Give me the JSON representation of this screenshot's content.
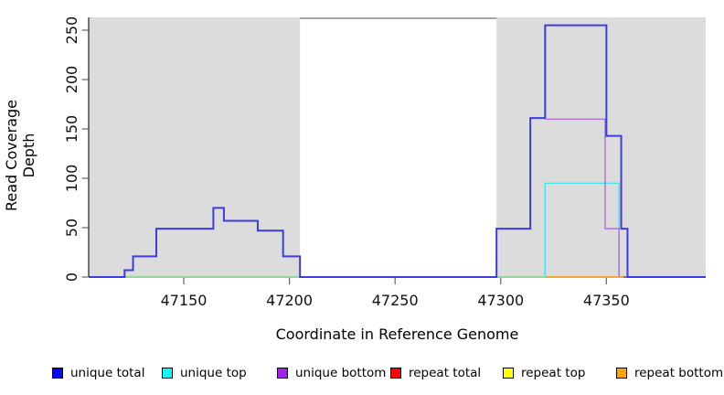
{
  "chart_data": {
    "type": "line",
    "subtype": "step",
    "title": "",
    "xlabel": "Coordinate in Reference Genome",
    "ylabel": "Read Coverage Depth",
    "xlim": [
      47105,
      47397
    ],
    "ylim": [
      0,
      263
    ],
    "xticks": [
      47150,
      47200,
      47250,
      47300,
      47350
    ],
    "yticks": [
      0,
      50,
      100,
      150,
      200,
      250
    ],
    "grid": false,
    "legend_position": "bottom",
    "colors": {
      "background": "#FFFFFF",
      "shade": "#DCDCDC",
      "axis": "#333333",
      "tick": "#666666",
      "tick_label": "#111111",
      "frame_top": "#8A8A8A"
    },
    "shaded_regions": [
      {
        "x1": 47105,
        "x2": 47205
      },
      {
        "x1": 47298,
        "x2": 47397
      }
    ],
    "frame_top_segment": {
      "x1": 47205,
      "x2": 47298
    },
    "series": [
      {
        "name": "zero overlap line (left region)",
        "line_color": "#8CDE8C",
        "width": 1.4,
        "steps": [
          [
            47122,
            0
          ]
        ],
        "end": 47205
      },
      {
        "name": "zero overlap line (right region)",
        "line_color": "#8CDE8C",
        "width": 1.4,
        "steps": [
          [
            47298,
            0
          ]
        ],
        "end": 47321
      },
      {
        "name": "repeat bottom",
        "line_color": "#FFA51E",
        "width": 1.8,
        "steps": [
          [
            47321,
            0
          ]
        ],
        "end": 47358
      },
      {
        "name": "unique top",
        "line_color": "#45E3E8",
        "width": 1.4,
        "steps": [
          [
            47321,
            0
          ],
          [
            47321,
            95
          ],
          [
            47356,
            0
          ]
        ]
      },
      {
        "name": "unique bottom",
        "line_color": "#AB63E0",
        "width": 1.3,
        "steps": [
          [
            47321,
            160
          ],
          [
            47349.4,
            49
          ],
          [
            47356,
            0
          ]
        ]
      },
      {
        "name": "unique total",
        "line_color": "#3C3CE0",
        "width": 2,
        "steps": [
          [
            47105,
            0
          ],
          [
            47122,
            7
          ],
          [
            47126,
            21
          ],
          [
            47137,
            49
          ],
          [
            47164,
            70
          ],
          [
            47169,
            57
          ],
          [
            47185,
            47
          ],
          [
            47197,
            21
          ],
          [
            47205,
            0
          ],
          [
            47298,
            49
          ],
          [
            47314,
            161
          ],
          [
            47321,
            255
          ],
          [
            47350,
            143
          ],
          [
            47357,
            49
          ],
          [
            47360,
            0
          ]
        ],
        "end": 47397
      }
    ],
    "legend": {
      "items": [
        {
          "label": "unique total",
          "color": "#0000FF"
        },
        {
          "label": "unique top",
          "color": "#00FFFF"
        },
        {
          "label": "unique bottom",
          "color": "#A020F0"
        },
        {
          "label": "repeat total",
          "color": "#FF0000"
        },
        {
          "label": "repeat top",
          "color": "#FFFF00"
        },
        {
          "label": "repeat bottom",
          "color": "#FFA500"
        }
      ]
    }
  }
}
